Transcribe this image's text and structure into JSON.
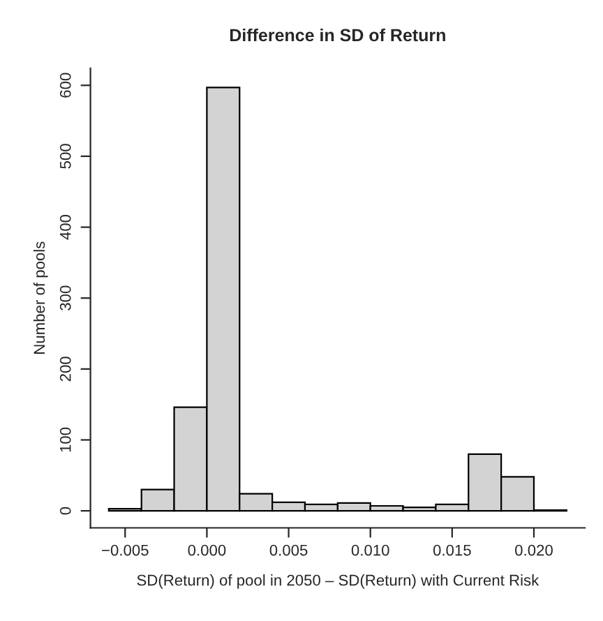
{
  "chart_data": {
    "type": "histogram",
    "title": "Difference in SD of Return",
    "xlabel": "SD(Return) of pool in 2050 – SD(Return) with Current Risk",
    "ylabel": "Number of pools",
    "bins": [
      -0.006,
      -0.004,
      -0.002,
      0.0,
      0.002,
      0.004,
      0.006,
      0.008,
      0.01,
      0.012,
      0.014,
      0.016,
      0.018,
      0.02,
      0.022
    ],
    "values": [
      3,
      30,
      146,
      597,
      24,
      12,
      9,
      11,
      7,
      5,
      9,
      80,
      48,
      1
    ],
    "color": "#d3d3d3",
    "xlim": [
      -0.00712,
      0.02312
    ],
    "xticks": [
      {
        "value": -0.005,
        "label": "−0.005"
      },
      {
        "value": 0.0,
        "label": "0.000"
      },
      {
        "value": 0.005,
        "label": "0.005"
      },
      {
        "value": 0.01,
        "label": "0.010"
      },
      {
        "value": 0.015,
        "label": "0.015"
      },
      {
        "value": 0.02,
        "label": "0.020"
      }
    ],
    "ylim": [
      -24,
      624
    ],
    "yticks": [
      0,
      100,
      200,
      300,
      400,
      500,
      600
    ],
    "grid": false
  }
}
